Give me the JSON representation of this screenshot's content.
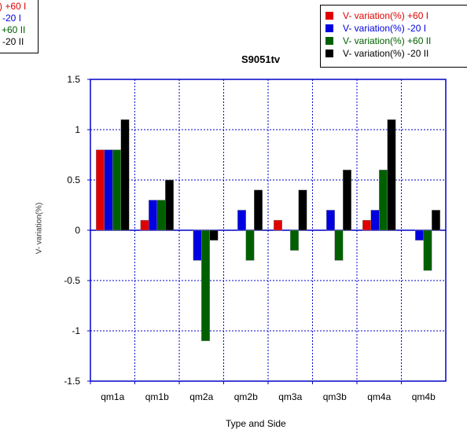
{
  "chart_data": {
    "type": "bar",
    "title": "S9051tv",
    "xlabel": "Type and Side",
    "ylabel": "V- variation(%)",
    "ylim": [
      -1.5,
      1.5
    ],
    "yticks": [
      "1.5",
      "1",
      "0.5",
      "0",
      "-0.5",
      "-1",
      "-1.5"
    ],
    "categories": [
      "qm1a",
      "qm1b",
      "qm2a",
      "qm2b",
      "qm3a",
      "qm3b",
      "qm4a",
      "qm4b"
    ],
    "series": [
      {
        "name": "V- variation(%) +60 I",
        "color": "#e00000",
        "values": [
          0.8,
          0.1,
          0.0,
          0.0,
          0.1,
          0.0,
          0.1,
          0.0
        ]
      },
      {
        "name": "V- variation(%) -20 I",
        "color": "#0000e0",
        "values": [
          0.8,
          0.3,
          -0.3,
          0.2,
          0.0,
          0.2,
          0.2,
          -0.1
        ]
      },
      {
        "name": "V- variation(%) +60 II",
        "color": "#006000",
        "values": [
          0.8,
          0.3,
          -1.1,
          -0.3,
          -0.2,
          -0.3,
          0.6,
          -0.4
        ]
      },
      {
        "name": "V- variation(%) -20 II",
        "color": "#000000",
        "values": [
          1.1,
          0.5,
          -0.1,
          0.4,
          0.4,
          0.6,
          1.1,
          0.2
        ]
      }
    ],
    "grid": true,
    "legend_position": "top-right",
    "legend_visible_text": [
      ") +60 I",
      "-20 I",
      "+60 II",
      "-20 II"
    ]
  }
}
